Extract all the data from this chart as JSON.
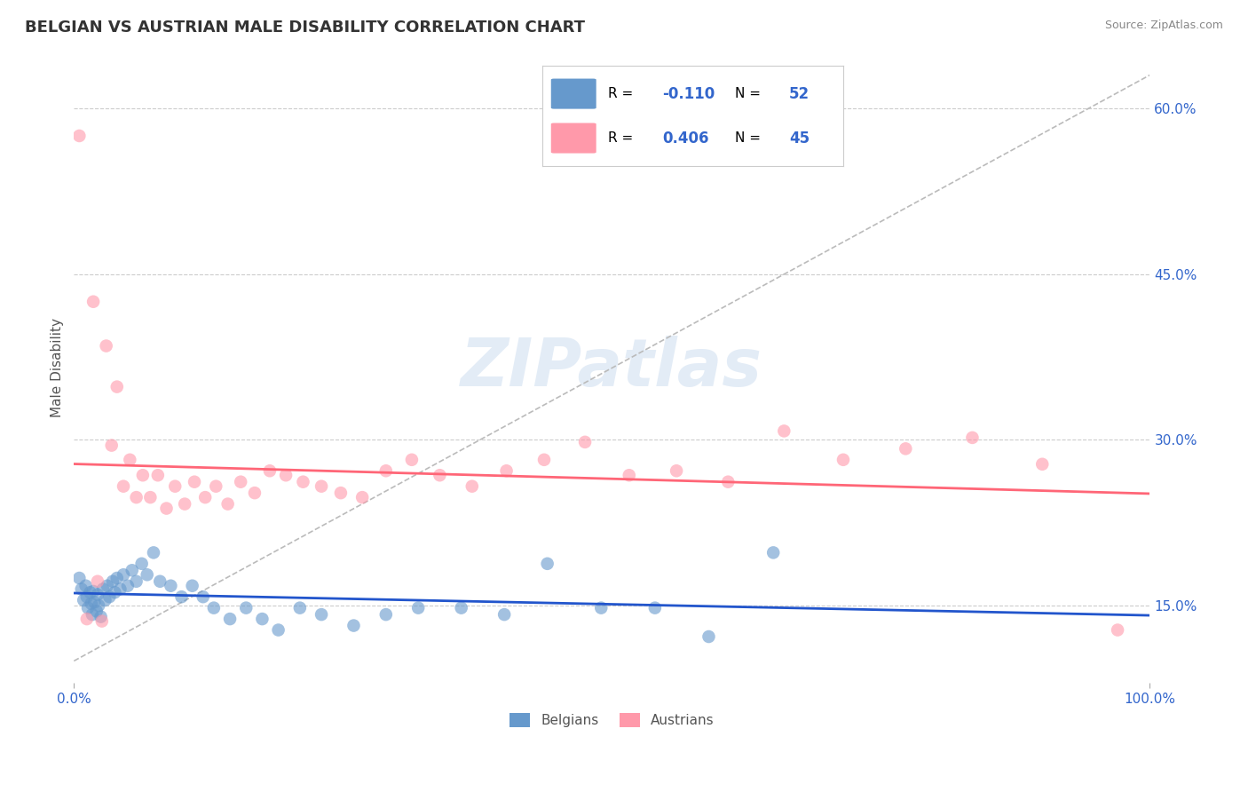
{
  "title": "BELGIAN VS AUSTRIAN MALE DISABILITY CORRELATION CHART",
  "source": "Source: ZipAtlas.com",
  "ylabel": "Male Disability",
  "watermark": "ZIPatlas",
  "xlim": [
    0.0,
    1.0
  ],
  "ylim": [
    0.08,
    0.65
  ],
  "yticks": [
    0.15,
    0.3,
    0.45,
    0.6
  ],
  "yticklabels": [
    "15.0%",
    "30.0%",
    "45.0%",
    "60.0%"
  ],
  "belgian_R": -0.11,
  "belgian_N": 52,
  "austrian_R": 0.406,
  "austrian_N": 45,
  "belgian_color": "#6699CC",
  "austrian_color": "#FF99AA",
  "belgian_line_color": "#2255CC",
  "austrian_line_color": "#FF6677",
  "diagonal_color": "#BBBBBB",
  "grid_color": "#CCCCCC",
  "title_color": "#333333",
  "axis_label_color": "#555555",
  "tick_color": "#3366CC",
  "legend_R_color": "#3366CC",
  "belgians_x": [
    0.005,
    0.007,
    0.009,
    0.011,
    0.012,
    0.013,
    0.015,
    0.016,
    0.017,
    0.018,
    0.019,
    0.021,
    0.022,
    0.023,
    0.025,
    0.027,
    0.029,
    0.031,
    0.033,
    0.036,
    0.038,
    0.04,
    0.043,
    0.046,
    0.05,
    0.054,
    0.058,
    0.063,
    0.068,
    0.074,
    0.08,
    0.09,
    0.1,
    0.11,
    0.12,
    0.13,
    0.145,
    0.16,
    0.175,
    0.19,
    0.21,
    0.23,
    0.26,
    0.29,
    0.32,
    0.36,
    0.4,
    0.44,
    0.49,
    0.54,
    0.59,
    0.65
  ],
  "belgians_y": [
    0.175,
    0.165,
    0.155,
    0.168,
    0.158,
    0.148,
    0.162,
    0.152,
    0.142,
    0.163,
    0.153,
    0.145,
    0.16,
    0.15,
    0.14,
    0.165,
    0.155,
    0.168,
    0.158,
    0.172,
    0.162,
    0.175,
    0.165,
    0.178,
    0.168,
    0.182,
    0.172,
    0.188,
    0.178,
    0.198,
    0.172,
    0.168,
    0.158,
    0.168,
    0.158,
    0.148,
    0.138,
    0.148,
    0.138,
    0.128,
    0.148,
    0.142,
    0.132,
    0.142,
    0.148,
    0.148,
    0.142,
    0.188,
    0.148,
    0.148,
    0.122,
    0.198
  ],
  "austrians_x": [
    0.005,
    0.012,
    0.018,
    0.022,
    0.026,
    0.03,
    0.035,
    0.04,
    0.046,
    0.052,
    0.058,
    0.064,
    0.071,
    0.078,
    0.086,
    0.094,
    0.103,
    0.112,
    0.122,
    0.132,
    0.143,
    0.155,
    0.168,
    0.182,
    0.197,
    0.213,
    0.23,
    0.248,
    0.268,
    0.29,
    0.314,
    0.34,
    0.37,
    0.402,
    0.437,
    0.475,
    0.516,
    0.56,
    0.608,
    0.66,
    0.715,
    0.773,
    0.835,
    0.9,
    0.97
  ],
  "austrians_y": [
    0.575,
    0.138,
    0.425,
    0.172,
    0.136,
    0.385,
    0.295,
    0.348,
    0.258,
    0.282,
    0.248,
    0.268,
    0.248,
    0.268,
    0.238,
    0.258,
    0.242,
    0.262,
    0.248,
    0.258,
    0.242,
    0.262,
    0.252,
    0.272,
    0.268,
    0.262,
    0.258,
    0.252,
    0.248,
    0.272,
    0.282,
    0.268,
    0.258,
    0.272,
    0.282,
    0.298,
    0.268,
    0.272,
    0.262,
    0.308,
    0.282,
    0.292,
    0.302,
    0.278,
    0.128
  ]
}
